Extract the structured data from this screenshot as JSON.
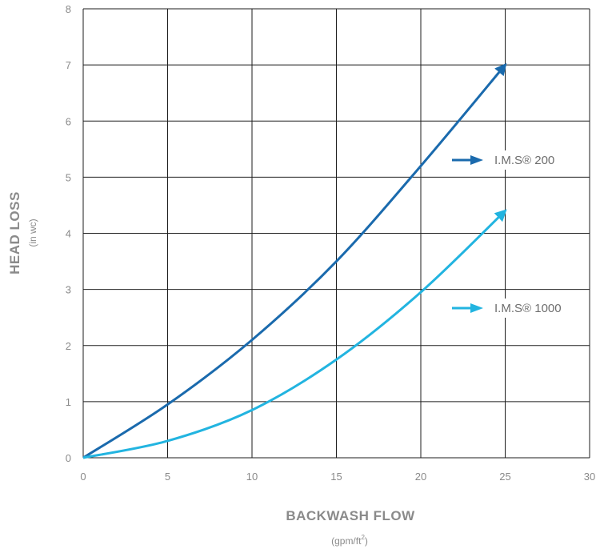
{
  "chart_data": {
    "type": "line",
    "xlabel": "BACKWASH FLOW",
    "xunit_base": "(gpm/ft",
    "xunit_sup": "2",
    "xunit_end": ")",
    "ylabel": "HEAD LOSS",
    "yunit": "(in wc)",
    "xlim": [
      0,
      30
    ],
    "ylim": [
      0,
      8
    ],
    "xticks": [
      "0",
      "5",
      "10",
      "15",
      "20",
      "25",
      "30"
    ],
    "yticks": [
      "0",
      "1",
      "2",
      "3",
      "4",
      "5",
      "6",
      "7",
      "8"
    ],
    "grid": true,
    "legend_placement": "right-inside",
    "series": [
      {
        "name": "I.M.S® 200",
        "color": "#1a6aad",
        "x": [
          0,
          5,
          10,
          15,
          20,
          25
        ],
        "y": [
          0,
          0.95,
          2.1,
          3.5,
          5.2,
          7.0
        ]
      },
      {
        "name": "I.M.S® 1000",
        "color": "#22b4e0",
        "x": [
          0,
          5,
          10,
          15,
          20,
          25
        ],
        "y": [
          0,
          0.3,
          0.85,
          1.75,
          2.95,
          4.4
        ]
      }
    ]
  }
}
